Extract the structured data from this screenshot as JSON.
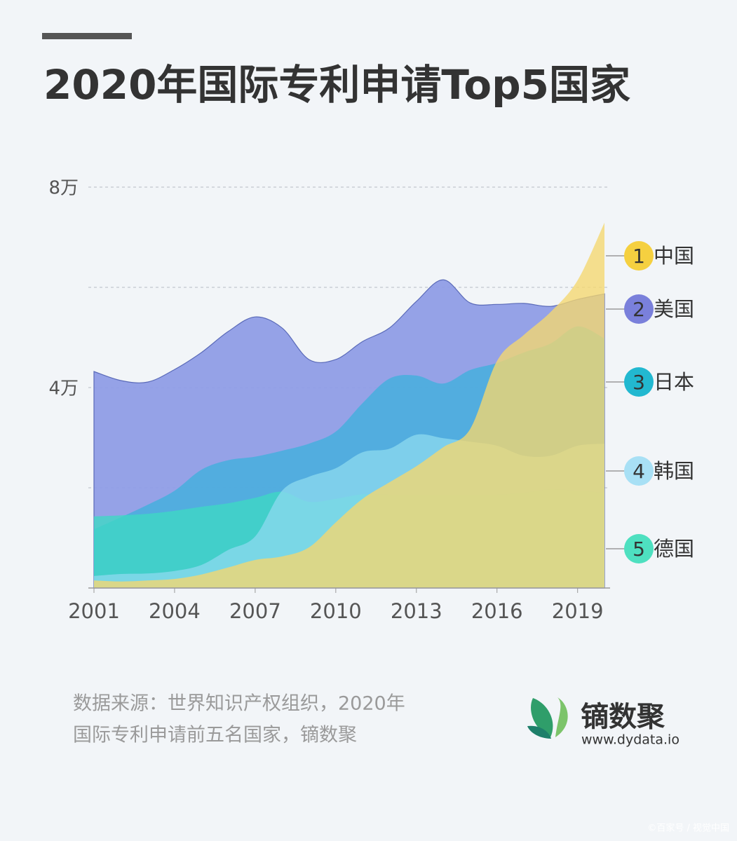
{
  "title": "2020年国际专利申请Top5国家",
  "chart_data": {
    "type": "area",
    "x": [
      2001,
      2002,
      2003,
      2004,
      2005,
      2006,
      2007,
      2008,
      2009,
      2010,
      2011,
      2012,
      2013,
      2014,
      2015,
      2016,
      2017,
      2018,
      2019,
      2020
    ],
    "xlim": [
      2001,
      2020
    ],
    "xticks": [
      2001,
      2004,
      2007,
      2010,
      2013,
      2016,
      2019
    ],
    "ylim": [
      0,
      8
    ],
    "yticks": [
      {
        "value": 4,
        "label": "4万"
      },
      {
        "value": 8,
        "label": "8万"
      }
    ],
    "grid_lines": [
      2,
      4,
      6,
      8
    ],
    "series": [
      {
        "name": "美国",
        "rank": 2,
        "color": "#8f9de6",
        "legend_color": "#7a80db",
        "values": [
          4.32,
          4.14,
          4.11,
          4.36,
          4.7,
          5.12,
          5.41,
          5.19,
          4.56,
          4.56,
          4.92,
          5.19,
          5.72,
          6.15,
          5.69,
          5.66,
          5.68,
          5.62,
          5.76,
          5.87
        ]
      },
      {
        "name": "日本",
        "rank": 3,
        "color": "#3fb0dc",
        "legend_color": "#22b8d0",
        "values": [
          1.17,
          1.41,
          1.66,
          1.94,
          2.36,
          2.55,
          2.62,
          2.74,
          2.88,
          3.12,
          3.69,
          4.18,
          4.24,
          4.08,
          4.35,
          4.49,
          4.7,
          4.88,
          5.22,
          4.98
        ]
      },
      {
        "name": "德国",
        "rank": 5,
        "color": "#3dd8c4",
        "legend_color": "#4ee0c0",
        "values": [
          1.43,
          1.45,
          1.48,
          1.54,
          1.62,
          1.69,
          1.8,
          1.92,
          1.72,
          1.78,
          1.87,
          1.86,
          1.86,
          1.86,
          1.86,
          1.86,
          1.9,
          1.97,
          1.94,
          1.9
        ]
      },
      {
        "name": "韩国",
        "rank": 4,
        "color": "#8ad8ee",
        "legend_color": "#a8e0f5",
        "values": [
          0.24,
          0.28,
          0.29,
          0.34,
          0.46,
          0.76,
          1.03,
          1.94,
          2.22,
          2.39,
          2.71,
          2.78,
          3.06,
          2.99,
          2.92,
          2.84,
          2.64,
          2.64,
          2.84,
          2.88
        ]
      },
      {
        "name": "中国",
        "rank": 1,
        "color": "#f5d76e",
        "legend_color": "#f5d040",
        "values": [
          0.15,
          0.13,
          0.15,
          0.18,
          0.27,
          0.41,
          0.56,
          0.63,
          0.81,
          1.31,
          1.78,
          2.11,
          2.43,
          2.81,
          3.17,
          4.53,
          5.05,
          5.51,
          6.14,
          7.29
        ]
      }
    ]
  },
  "source": [
    "数据来源：世界知识产权组织，2020年",
    "国际专利申请前五名国家，镝数聚"
  ],
  "logo": {
    "name": "镝数聚",
    "url": "www.dydata.io"
  },
  "watermark": "©百家号 / 视觉中国"
}
